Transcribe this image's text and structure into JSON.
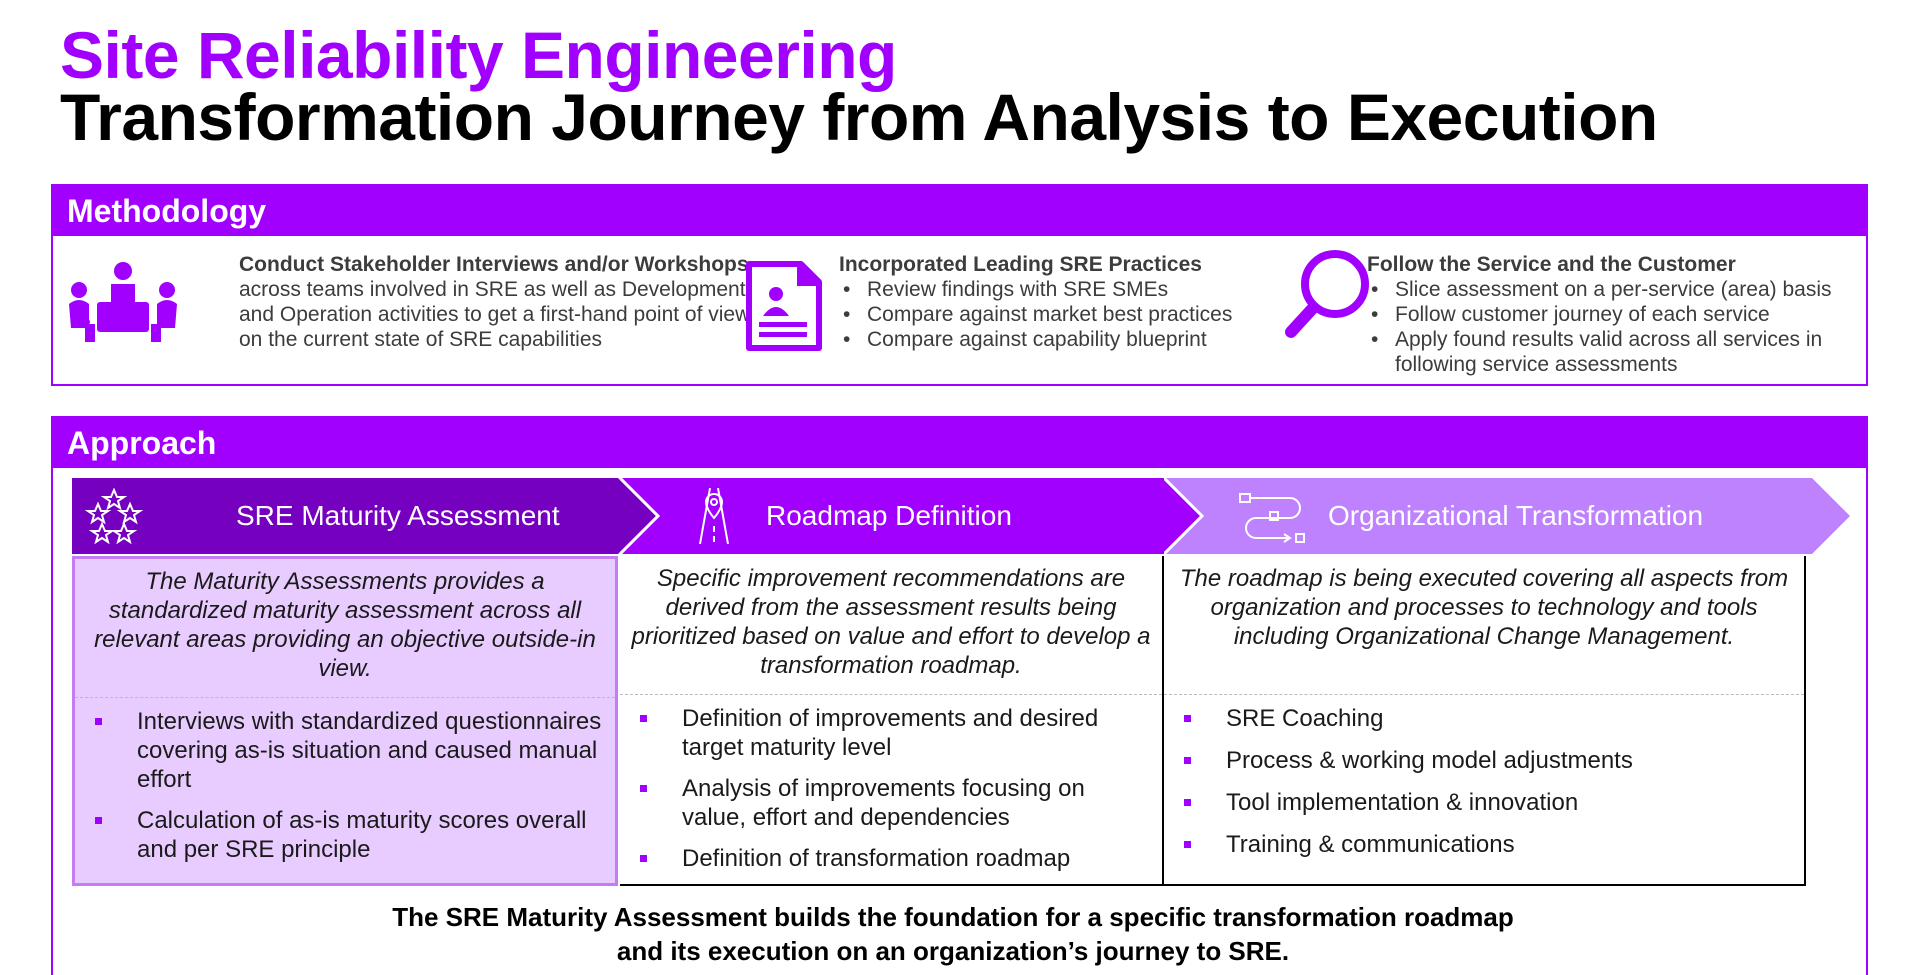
{
  "title_line1": "Site Reliability Engineering",
  "title_line2": "Transformation Journey from Analysis to Execution",
  "methodology": {
    "heading": "Methodology",
    "columns": [
      {
        "icon": "meeting-icon",
        "head": "Conduct Stakeholder Interviews and/or Workshops",
        "body": "across teams involved in SRE as well as Development and Operation activities to get a first-hand point of view on the current state of SRE capabilities"
      },
      {
        "icon": "document-profile-icon",
        "head": "Incorporated Leading SRE Practices",
        "bullets": [
          "Review findings with SRE SMEs",
          "Compare against market best practices",
          "Compare against capability blueprint"
        ]
      },
      {
        "icon": "magnifier-icon",
        "head": "Follow the Service and the Customer",
        "bullets": [
          "Slice assessment on a per-service (area) basis",
          "Follow customer journey of each service",
          "Apply found results valid across all services in following service assessments"
        ]
      }
    ]
  },
  "approach": {
    "heading": "Approach",
    "steps": [
      {
        "label": "SRE Maturity Assessment",
        "icon": "stars-icon",
        "color": "#7500c0",
        "description": "The Maturity Assessments provides a standardized maturity assessment across all relevant areas providing an objective outside-in view.",
        "bullets": [
          "Interviews with standardized questionnaires covering as-is situation and caused manual effort",
          "Calculation of as-is maturity scores overall and per SRE principle"
        ]
      },
      {
        "label": "Roadmap Definition",
        "icon": "road-pin-icon",
        "color": "#a100ff",
        "description": "Specific improvement recommendations are derived from the assessment results being prioritized based on value and effort to develop a transformation roadmap.",
        "bullets": [
          "Definition of improvements and desired target maturity level",
          "Analysis of improvements focusing on value, effort and dependencies",
          "Definition of transformation roadmap"
        ]
      },
      {
        "label": "Organizational Transformation",
        "icon": "process-flow-icon",
        "color": "#be82ff",
        "description": "The roadmap is being executed covering all aspects from organization and processes to technology and tools including Organizational Change Management.",
        "bullets": [
          "SRE Coaching",
          "Process & working model adjustments",
          "Tool implementation & innovation",
          "Training & communications"
        ]
      }
    ]
  },
  "footer": {
    "line1": "The SRE Maturity Assessment builds the foundation for a specific transformation roadmap",
    "line2": "and its execution on an organization’s journey to SRE."
  }
}
